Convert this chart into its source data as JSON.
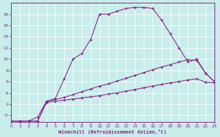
{
  "background_color": "#c8edea",
  "line_color": "#882288",
  "grid_color": "#aadddd",
  "xlim": [
    0,
    23
  ],
  "ylim": [
    -1.2,
    20
  ],
  "yticks": [
    0,
    2,
    4,
    6,
    8,
    10,
    12,
    14,
    16,
    18
  ],
  "ytick_labels": [
    "-0",
    "2",
    "4",
    "6",
    "8",
    "10",
    "12",
    "14",
    "16",
    "18"
  ],
  "xticks": [
    0,
    1,
    2,
    3,
    4,
    5,
    6,
    7,
    8,
    9,
    10,
    11,
    12,
    13,
    14,
    15,
    16,
    17,
    18,
    19,
    20,
    21,
    22,
    23
  ],
  "xlabel": "Windchill (Refroidissement éolien,°C)",
  "curve1_x": [
    0,
    1,
    2,
    3,
    4,
    5,
    6,
    7,
    8,
    9,
    10,
    11,
    12,
    13,
    14,
    15,
    16,
    17,
    18,
    19,
    20,
    21,
    22,
    23
  ],
  "curve1_y": [
    -1,
    -1,
    -1,
    -0.3,
    2.5,
    3.0,
    6.5,
    10.0,
    11.0,
    13.5,
    18.0,
    18.0,
    18.5,
    19.0,
    19.2,
    19.2,
    19.0,
    17.0,
    14.5,
    12.0,
    9.5,
    10.0,
    7.5,
    6.0
  ],
  "curve2_x": [
    0,
    1,
    2,
    3,
    4,
    5,
    6,
    7,
    8,
    9,
    10,
    11,
    12,
    13,
    14,
    15,
    16,
    17,
    18,
    19,
    20,
    21,
    22,
    23
  ],
  "curve2_y": [
    -1,
    -1,
    -1,
    -1,
    2.5,
    2.8,
    3.2,
    3.7,
    4.2,
    4.7,
    5.2,
    5.6,
    6.1,
    6.6,
    7.1,
    7.6,
    8.1,
    8.6,
    9.0,
    9.5,
    9.9,
    9.8,
    7.5,
    6.0
  ],
  "curve3_x": [
    0,
    1,
    2,
    3,
    4,
    5,
    6,
    7,
    8,
    9,
    10,
    11,
    12,
    13,
    14,
    15,
    16,
    17,
    18,
    19,
    20,
    21,
    22,
    23
  ],
  "curve3_y": [
    -1,
    -1,
    -1,
    -1,
    2.3,
    2.5,
    2.7,
    2.9,
    3.1,
    3.3,
    3.5,
    3.8,
    4.0,
    4.3,
    4.6,
    4.9,
    5.2,
    5.5,
    5.8,
    6.0,
    6.3,
    6.5,
    5.9,
    5.8
  ]
}
